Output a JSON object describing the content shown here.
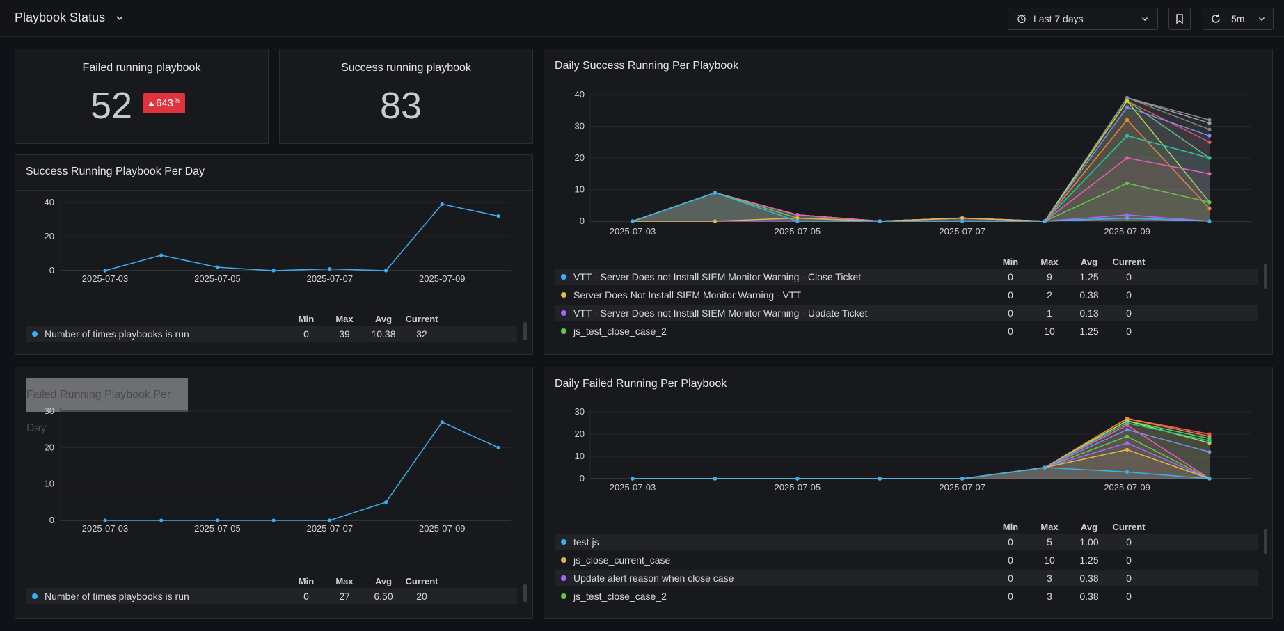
{
  "dashboard": {
    "title": "Playbook Status"
  },
  "toolbar": {
    "time_range": "Last 7 days",
    "refresh_interval": "5m"
  },
  "stats": {
    "failed": {
      "title": "Failed running playbook",
      "value": "52",
      "delta": "643",
      "delta_unit": "%"
    },
    "success": {
      "title": "Success running playbook",
      "value": "83"
    }
  },
  "legend_headers": {
    "min": "Min",
    "max": "Max",
    "avg": "Avg",
    "current": "Current"
  },
  "colors": {
    "background": "#111217",
    "panel": "#18191d",
    "line_blue": "#3ab0f0",
    "badge_red": "#e0323f"
  },
  "panels": {
    "success_per_day": {
      "title": "Success Running Playbook Per Day"
    },
    "failed_per_day": {
      "title": "Failed Running Playbook Per Day"
    },
    "daily_success": {
      "title": "Daily Success Running Per Playbook"
    },
    "daily_failed": {
      "title": "Daily Failed Running Per Playbook"
    }
  },
  "chart_data": [
    {
      "id": "success_per_day",
      "type": "line",
      "x": [
        "2025-07-03",
        "2025-07-04",
        "2025-07-05",
        "2025-07-06",
        "2025-07-07",
        "2025-07-08",
        "2025-07-09",
        "2025-07-10"
      ],
      "xticks": [
        "2025-07-03",
        "2025-07-05",
        "2025-07-07",
        "2025-07-09"
      ],
      "ylim": [
        0,
        40
      ],
      "yticks": [
        0,
        20,
        40
      ],
      "series": [
        {
          "name": "Number of times playbooks is run",
          "color": "#3ab0f0",
          "values": [
            0,
            9,
            2,
            0,
            1,
            0,
            39,
            32
          ],
          "min": "0",
          "max": "39",
          "avg": "10.38",
          "current": "32"
        }
      ]
    },
    {
      "id": "failed_per_day",
      "type": "line",
      "x": [
        "2025-07-03",
        "2025-07-04",
        "2025-07-05",
        "2025-07-06",
        "2025-07-07",
        "2025-07-08",
        "2025-07-09",
        "2025-07-10"
      ],
      "xticks": [
        "2025-07-03",
        "2025-07-05",
        "2025-07-07",
        "2025-07-09"
      ],
      "ylim": [
        0,
        30
      ],
      "yticks": [
        0,
        10,
        20,
        30
      ],
      "series": [
        {
          "name": "Number of times playbooks is run",
          "color": "#3ab0f0",
          "values": [
            0,
            0,
            0,
            0,
            0,
            5,
            27,
            20
          ],
          "min": "0",
          "max": "27",
          "avg": "6.50",
          "current": "20"
        }
      ]
    },
    {
      "id": "daily_success",
      "type": "area",
      "x": [
        "2025-07-03",
        "2025-07-04",
        "2025-07-05",
        "2025-07-06",
        "2025-07-07",
        "2025-07-08",
        "2025-07-09",
        "2025-07-10"
      ],
      "xticks": [
        "2025-07-03",
        "2025-07-05",
        "2025-07-07",
        "2025-07-09"
      ],
      "ylim": [
        0,
        40
      ],
      "yticks": [
        0,
        10,
        20,
        30,
        40
      ],
      "series": [
        {
          "name": "VTT - Server Does not Install SIEM Monitor Warning - Close Ticket",
          "color": "#3ab0f0",
          "values": [
            0,
            9,
            0,
            0,
            0,
            0,
            1,
            0
          ],
          "min": "0",
          "max": "9",
          "avg": "1.25",
          "current": "0"
        },
        {
          "name": "Server Does Not Install SIEM Monitor Warning - VTT",
          "color": "#e5b54a",
          "values": [
            0,
            0,
            1,
            0,
            1,
            0,
            1,
            0
          ],
          "min": "0",
          "max": "2",
          "avg": "0.38",
          "current": "0"
        },
        {
          "name": "VTT - Server Does not Install SIEM Monitor Warning - Update Ticket",
          "color": "#a468f5",
          "values": [
            0,
            0,
            0,
            0,
            0,
            0,
            2,
            0
          ],
          "min": "0",
          "max": "1",
          "avg": "0.13",
          "current": "0"
        },
        {
          "name": "js_test_close_case_2",
          "color": "#64c74a",
          "values": [
            0,
            9,
            1,
            0,
            0,
            0,
            12,
            6
          ],
          "min": "0",
          "max": "10",
          "avg": "1.25",
          "current": "0"
        },
        {
          "color": "#f05bb5",
          "values": [
            0,
            9,
            2,
            0,
            1,
            0,
            20,
            15
          ]
        },
        {
          "color": "#2ec2a8",
          "values": [
            0,
            9,
            2,
            0,
            1,
            0,
            27,
            20
          ]
        },
        {
          "color": "#f0863a",
          "values": [
            0,
            9,
            2,
            0,
            1,
            0,
            32,
            4
          ]
        },
        {
          "color": "#7a8cf0",
          "values": [
            0,
            9,
            2,
            0,
            1,
            0,
            36,
            27
          ]
        },
        {
          "color": "#b6d94c",
          "values": [
            0,
            9,
            2,
            0,
            1,
            0,
            38,
            6
          ]
        },
        {
          "color": "#e0565b",
          "values": [
            0,
            9,
            2,
            0,
            1,
            0,
            38,
            25
          ]
        },
        {
          "color": "#46d06c",
          "values": [
            0,
            9,
            2,
            0,
            1,
            0,
            38,
            20
          ]
        },
        {
          "color": "#8a8b90",
          "values": [
            0,
            9,
            2,
            0,
            1,
            0,
            39,
            32
          ]
        },
        {
          "color": "#a0a1a6",
          "values": [
            0,
            9,
            2,
            0,
            1,
            0,
            39,
            31
          ]
        },
        {
          "color": "#7f8085",
          "values": [
            0,
            9,
            2,
            0,
            1,
            0,
            39,
            29
          ]
        }
      ]
    },
    {
      "id": "daily_failed",
      "type": "area",
      "x": [
        "2025-07-03",
        "2025-07-04",
        "2025-07-05",
        "2025-07-06",
        "2025-07-07",
        "2025-07-08",
        "2025-07-09",
        "2025-07-10"
      ],
      "xticks": [
        "2025-07-03",
        "2025-07-05",
        "2025-07-07",
        "2025-07-09"
      ],
      "ylim": [
        0,
        30
      ],
      "yticks": [
        0,
        10,
        20,
        30
      ],
      "series": [
        {
          "name": "test js",
          "color": "#3ab0f0",
          "values": [
            0,
            0,
            0,
            0,
            0,
            5,
            3,
            0
          ],
          "min": "0",
          "max": "5",
          "avg": "1.00",
          "current": "0"
        },
        {
          "name": "js_close_current_case",
          "color": "#e5b54a",
          "values": [
            0,
            0,
            0,
            0,
            0,
            5,
            13,
            0
          ],
          "min": "0",
          "max": "10",
          "avg": "1.25",
          "current": "0"
        },
        {
          "name": "Update alert reason when close case",
          "color": "#a468f5",
          "values": [
            0,
            0,
            0,
            0,
            0,
            5,
            16,
            0
          ],
          "min": "0",
          "max": "3",
          "avg": "0.38",
          "current": "0"
        },
        {
          "name": "js_test_close_case_2",
          "color": "#64c74a",
          "values": [
            0,
            0,
            0,
            0,
            0,
            5,
            19,
            0
          ],
          "min": "0",
          "max": "3",
          "avg": "0.38",
          "current": "0"
        },
        {
          "color": "#7a8cf0",
          "values": [
            0,
            0,
            0,
            0,
            0,
            5,
            22,
            12
          ]
        },
        {
          "color": "#f05bb5",
          "values": [
            0,
            0,
            0,
            0,
            0,
            5,
            24,
            0
          ]
        },
        {
          "color": "#2ec2a8",
          "values": [
            0,
            0,
            0,
            0,
            0,
            5,
            25,
            17
          ]
        },
        {
          "color": "#b6d94c",
          "values": [
            0,
            0,
            0,
            0,
            0,
            5,
            26,
            16
          ]
        },
        {
          "color": "#46d06c",
          "values": [
            0,
            0,
            0,
            0,
            0,
            5,
            26,
            18
          ]
        },
        {
          "color": "#f0863a",
          "values": [
            0,
            0,
            0,
            0,
            0,
            5,
            27,
            19
          ]
        },
        {
          "color": "#e0565b",
          "values": [
            0,
            0,
            0,
            0,
            0,
            5,
            27,
            20
          ]
        },
        {
          "color": "#f07b7b",
          "values": [
            0,
            0,
            0,
            0,
            0,
            5,
            27,
            20
          ]
        }
      ]
    }
  ]
}
